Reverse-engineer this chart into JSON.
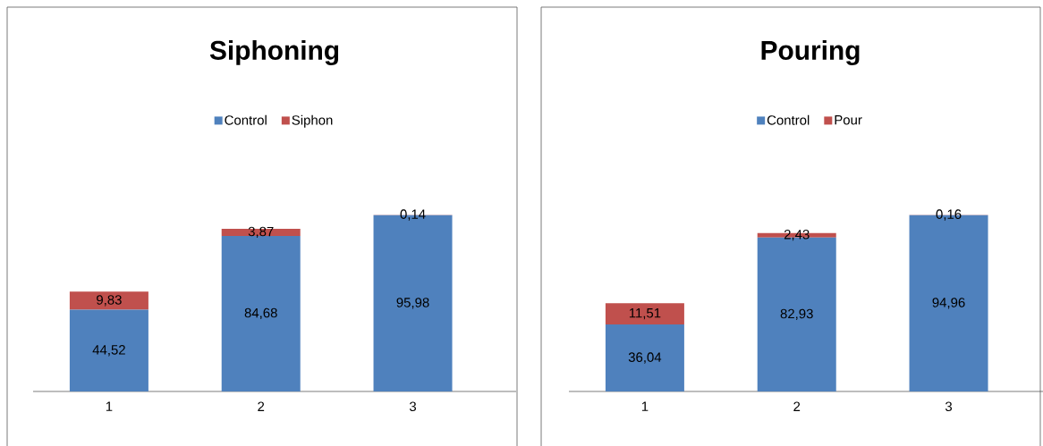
{
  "chart_data": [
    {
      "type": "bar",
      "stacked": true,
      "title": "Siphoning",
      "categories": [
        "1",
        "2",
        "3"
      ],
      "legend": "top",
      "tick_labels": "x",
      "series": [
        {
          "name": "Control",
          "color": "#4f81bd",
          "values": [
            44.52,
            84.68,
            95.98
          ],
          "value_labels": [
            "44,52",
            "84,68",
            "95,98"
          ]
        },
        {
          "name": "Siphon",
          "color": "#c0504d",
          "values": [
            9.83,
            3.87,
            0.14
          ],
          "value_labels": [
            "9,83",
            "3,87",
            "0,14"
          ]
        }
      ]
    },
    {
      "type": "bar",
      "stacked": true,
      "title": "Pouring",
      "categories": [
        "1",
        "2",
        "3"
      ],
      "legend": "top",
      "tick_labels": "x",
      "series": [
        {
          "name": "Control",
          "color": "#4f81bd",
          "values": [
            36.04,
            82.93,
            94.96
          ],
          "value_labels": [
            "36,04",
            "82,93",
            "94,96"
          ]
        },
        {
          "name": "Pour",
          "color": "#c0504d",
          "values": [
            11.51,
            2.43,
            0.16
          ],
          "value_labels": [
            "11,51",
            "2,43",
            "0,16"
          ]
        }
      ]
    }
  ]
}
